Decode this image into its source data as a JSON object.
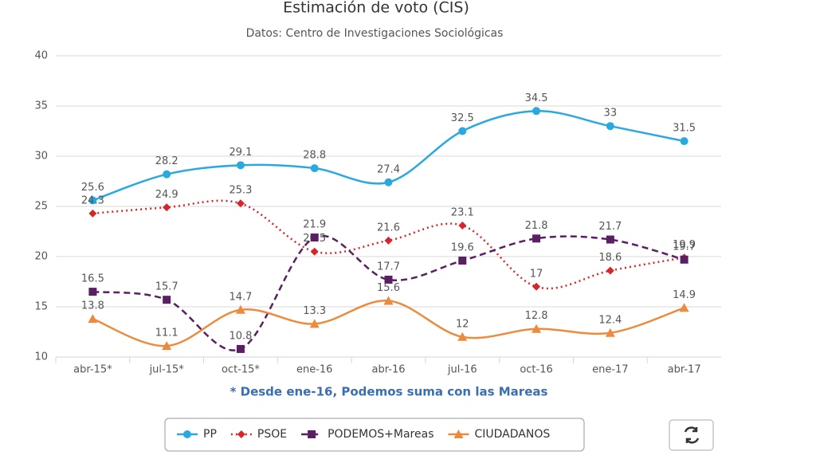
{
  "chart_data": {
    "type": "line",
    "title": "Estimación de voto (CIS)",
    "subtitle": "Datos: Centro de Investigaciones Sociológicas",
    "annotation": "* Desde ene-16, Podemos suma con las Mareas",
    "categories": [
      "abr-15*",
      "jul-15*",
      "oct-15*",
      "ene-16",
      "abr-16",
      "jul-16",
      "oct-16",
      "ene-17",
      "abr-17"
    ],
    "series": [
      {
        "name": "PP",
        "color": "#2ba8e0",
        "marker": "circle",
        "dash": "solid",
        "values": [
          25.6,
          28.2,
          29.1,
          28.8,
          27.4,
          32.5,
          34.5,
          33,
          31.5
        ]
      },
      {
        "name": "PSOE",
        "color": "#d7262b",
        "marker": "diamond",
        "dash": "dot",
        "values": [
          24.3,
          24.9,
          25.3,
          20.5,
          21.6,
          23.1,
          17,
          18.6,
          19.9
        ]
      },
      {
        "name": "PODEMOS+Mareas",
        "color": "#5a1f63",
        "marker": "square",
        "dash": "dash",
        "values": [
          16.5,
          15.7,
          10.8,
          21.9,
          17.7,
          19.6,
          21.8,
          21.7,
          19.7
        ]
      },
      {
        "name": "CIUDADANOS",
        "color": "#ee8a3c",
        "marker": "triangle",
        "dash": "solid",
        "values": [
          13.8,
          11.1,
          14.7,
          13.3,
          15.6,
          12,
          12.8,
          12.4,
          14.9
        ]
      }
    ],
    "ylim": [
      10,
      40
    ],
    "yticks": [
      10,
      15,
      20,
      25,
      30,
      35,
      40
    ],
    "grid": true,
    "legend": "bottom",
    "data_labels": true
  }
}
